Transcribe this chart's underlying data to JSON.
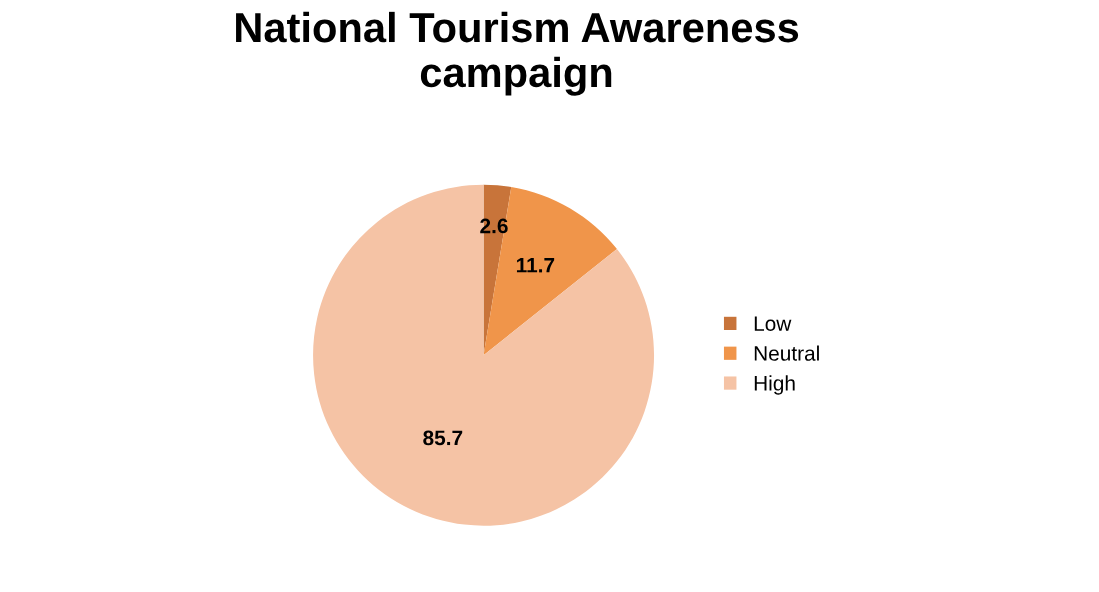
{
  "chart_data": {
    "type": "pie",
    "title": "National Tourism Awareness\ncampaign",
    "categories": [
      "Low",
      "Neutral",
      "High"
    ],
    "values": [
      2.6,
      11.7,
      85.7
    ],
    "colors": [
      "#c8743a",
      "#f0954a",
      "#f5c3a5"
    ],
    "data_labels": true,
    "legend": "right"
  }
}
